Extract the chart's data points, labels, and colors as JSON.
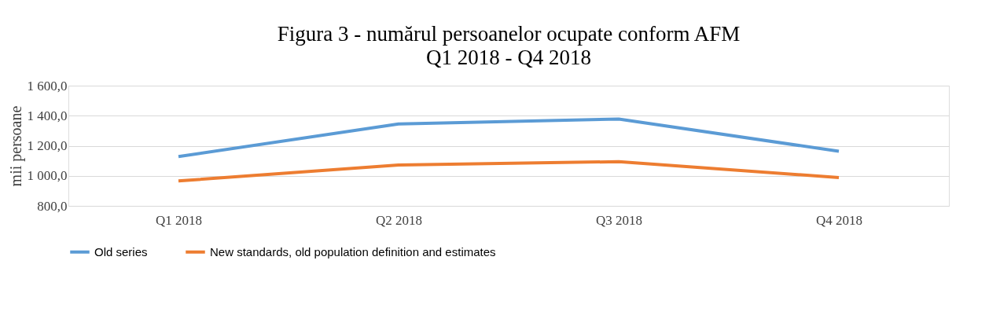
{
  "chart_data": {
    "type": "line",
    "title": "Figura 3 - numărul persoanelor ocupate conform AFM",
    "subtitle": "Q1 2018 - Q4 2018",
    "ylabel": "mii persoane",
    "categories": [
      "Q1 2018",
      "Q2 2018",
      "Q3 2018",
      "Q4 2018"
    ],
    "series": [
      {
        "name": "Old series",
        "color": "#5b9bd5",
        "values": [
          1128,
          1345,
          1378,
          1163
        ]
      },
      {
        "name": "New standards, old population definition and estimates",
        "color": "#ed7d31",
        "values": [
          966,
          1072,
          1094,
          988
        ]
      }
    ],
    "ylim": [
      800,
      1600
    ],
    "yticks": [
      {
        "value": 800,
        "label": "800,0"
      },
      {
        "value": 1000,
        "label": "1 000,0"
      },
      {
        "value": 1200,
        "label": "1 200,0"
      },
      {
        "value": 1400,
        "label": "1 400,0"
      },
      {
        "value": 1600,
        "label": "1 600,0"
      }
    ],
    "grid": "y",
    "legend": "bottom",
    "marker": "none",
    "line_style": "solid"
  }
}
